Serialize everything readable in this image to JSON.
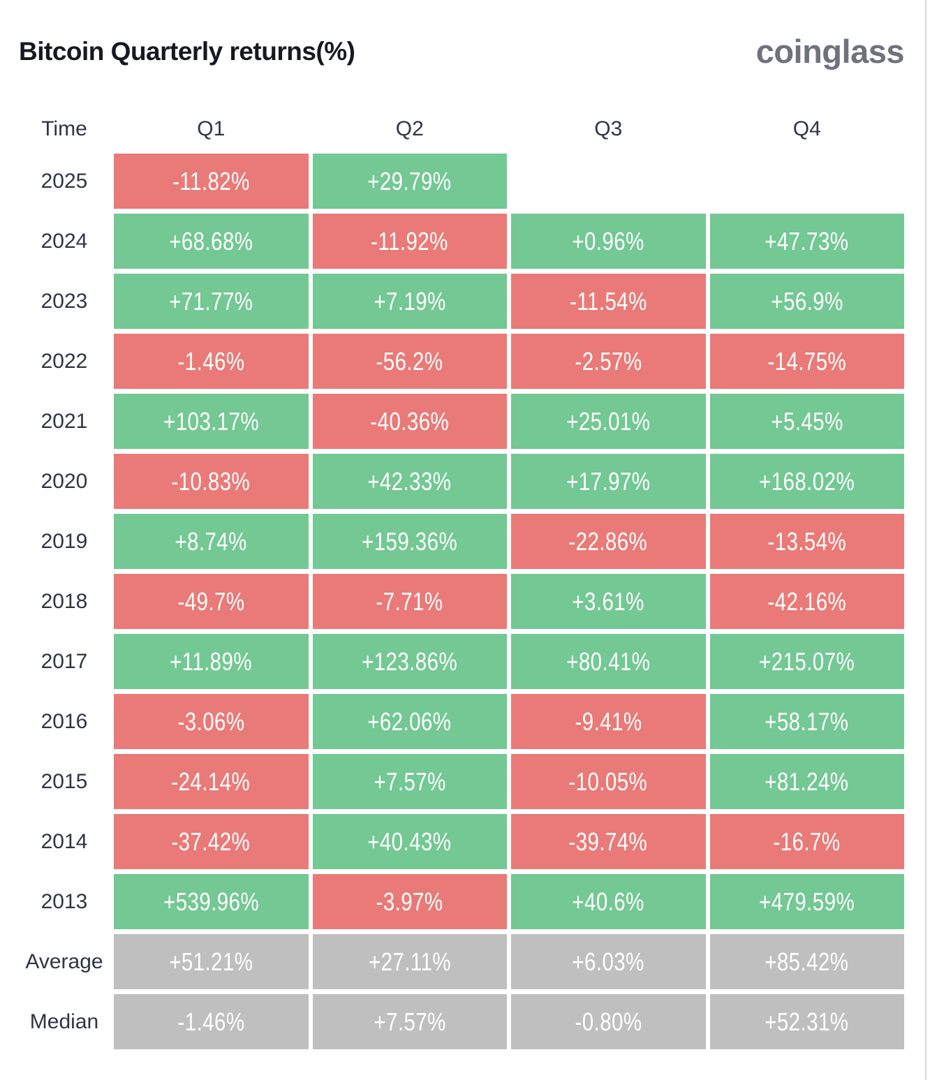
{
  "page": {
    "title": "Bitcoin Quarterly returns(%)",
    "logo": "coinglass"
  },
  "colors": {
    "positive": "#73c894",
    "negative": "#ea7a77",
    "summary": "#bfbfbf",
    "cell_text": "#ffffff",
    "label_text": "#2e3542",
    "title_text": "#16191f",
    "logo_text": "#6d727b"
  },
  "table": {
    "headers": [
      "Time",
      "Q1",
      "Q2",
      "Q3",
      "Q4"
    ],
    "rows": [
      {
        "label": "2025",
        "cells": [
          {
            "text": "-11.82%",
            "type": "negative"
          },
          {
            "text": "+29.79%",
            "type": "positive"
          },
          null,
          null
        ]
      },
      {
        "label": "2024",
        "cells": [
          {
            "text": "+68.68%",
            "type": "positive"
          },
          {
            "text": "-11.92%",
            "type": "negative"
          },
          {
            "text": "+0.96%",
            "type": "positive"
          },
          {
            "text": "+47.73%",
            "type": "positive"
          }
        ]
      },
      {
        "label": "2023",
        "cells": [
          {
            "text": "+71.77%",
            "type": "positive"
          },
          {
            "text": "+7.19%",
            "type": "positive"
          },
          {
            "text": "-11.54%",
            "type": "negative"
          },
          {
            "text": "+56.9%",
            "type": "positive"
          }
        ]
      },
      {
        "label": "2022",
        "cells": [
          {
            "text": "-1.46%",
            "type": "negative"
          },
          {
            "text": "-56.2%",
            "type": "negative"
          },
          {
            "text": "-2.57%",
            "type": "negative"
          },
          {
            "text": "-14.75%",
            "type": "negative"
          }
        ]
      },
      {
        "label": "2021",
        "cells": [
          {
            "text": "+103.17%",
            "type": "positive"
          },
          {
            "text": "-40.36%",
            "type": "negative"
          },
          {
            "text": "+25.01%",
            "type": "positive"
          },
          {
            "text": "+5.45%",
            "type": "positive"
          }
        ]
      },
      {
        "label": "2020",
        "cells": [
          {
            "text": "-10.83%",
            "type": "negative"
          },
          {
            "text": "+42.33%",
            "type": "positive"
          },
          {
            "text": "+17.97%",
            "type": "positive"
          },
          {
            "text": "+168.02%",
            "type": "positive"
          }
        ]
      },
      {
        "label": "2019",
        "cells": [
          {
            "text": "+8.74%",
            "type": "positive"
          },
          {
            "text": "+159.36%",
            "type": "positive"
          },
          {
            "text": "-22.86%",
            "type": "negative"
          },
          {
            "text": "-13.54%",
            "type": "negative"
          }
        ]
      },
      {
        "label": "2018",
        "cells": [
          {
            "text": "-49.7%",
            "type": "negative"
          },
          {
            "text": "-7.71%",
            "type": "negative"
          },
          {
            "text": "+3.61%",
            "type": "positive"
          },
          {
            "text": "-42.16%",
            "type": "negative"
          }
        ]
      },
      {
        "label": "2017",
        "cells": [
          {
            "text": "+11.89%",
            "type": "positive"
          },
          {
            "text": "+123.86%",
            "type": "positive"
          },
          {
            "text": "+80.41%",
            "type": "positive"
          },
          {
            "text": "+215.07%",
            "type": "positive"
          }
        ]
      },
      {
        "label": "2016",
        "cells": [
          {
            "text": "-3.06%",
            "type": "negative"
          },
          {
            "text": "+62.06%",
            "type": "positive"
          },
          {
            "text": "-9.41%",
            "type": "negative"
          },
          {
            "text": "+58.17%",
            "type": "positive"
          }
        ]
      },
      {
        "label": "2015",
        "cells": [
          {
            "text": "-24.14%",
            "type": "negative"
          },
          {
            "text": "+7.57%",
            "type": "positive"
          },
          {
            "text": "-10.05%",
            "type": "negative"
          },
          {
            "text": "+81.24%",
            "type": "positive"
          }
        ]
      },
      {
        "label": "2014",
        "cells": [
          {
            "text": "-37.42%",
            "type": "negative"
          },
          {
            "text": "+40.43%",
            "type": "positive"
          },
          {
            "text": "-39.74%",
            "type": "negative"
          },
          {
            "text": "-16.7%",
            "type": "negative"
          }
        ]
      },
      {
        "label": "2013",
        "cells": [
          {
            "text": "+539.96%",
            "type": "positive"
          },
          {
            "text": "-3.97%",
            "type": "negative"
          },
          {
            "text": "+40.6%",
            "type": "positive"
          },
          {
            "text": "+479.59%",
            "type": "positive"
          }
        ]
      },
      {
        "label": "Average",
        "cells": [
          {
            "text": "+51.21%",
            "type": "summary"
          },
          {
            "text": "+27.11%",
            "type": "summary"
          },
          {
            "text": "+6.03%",
            "type": "summary"
          },
          {
            "text": "+85.42%",
            "type": "summary"
          }
        ]
      },
      {
        "label": "Median",
        "cells": [
          {
            "text": "-1.46%",
            "type": "summary"
          },
          {
            "text": "+7.57%",
            "type": "summary"
          },
          {
            "text": "-0.80%",
            "type": "summary"
          },
          {
            "text": "+52.31%",
            "type": "summary"
          }
        ]
      }
    ]
  },
  "chart_data": {
    "type": "heatmap",
    "title": "Bitcoin Quarterly returns(%)",
    "columns": [
      "Q1",
      "Q2",
      "Q3",
      "Q4"
    ],
    "rows": [
      "2025",
      "2024",
      "2023",
      "2022",
      "2021",
      "2020",
      "2019",
      "2018",
      "2017",
      "2016",
      "2015",
      "2014",
      "2013",
      "Average",
      "Median"
    ],
    "values": [
      [
        -11.82,
        29.79,
        null,
        null
      ],
      [
        68.68,
        -11.92,
        0.96,
        47.73
      ],
      [
        71.77,
        7.19,
        -11.54,
        56.9
      ],
      [
        -1.46,
        -56.2,
        -2.57,
        -14.75
      ],
      [
        103.17,
        -40.36,
        25.01,
        5.45
      ],
      [
        -10.83,
        42.33,
        17.97,
        168.02
      ],
      [
        8.74,
        159.36,
        -22.86,
        -13.54
      ],
      [
        -49.7,
        -7.71,
        3.61,
        -42.16
      ],
      [
        11.89,
        123.86,
        80.41,
        215.07
      ],
      [
        -3.06,
        62.06,
        -9.41,
        58.17
      ],
      [
        -24.14,
        7.57,
        -10.05,
        81.24
      ],
      [
        -37.42,
        40.43,
        -39.74,
        -16.7
      ],
      [
        539.96,
        -3.97,
        40.6,
        479.59
      ],
      [
        51.21,
        27.11,
        6.03,
        85.42
      ],
      [
        -1.46,
        7.57,
        -0.8,
        52.31
      ]
    ],
    "legend": "green = positive quarterly return, red = negative quarterly return, gray = summary statistics",
    "grid": false,
    "legend_position": "none"
  }
}
